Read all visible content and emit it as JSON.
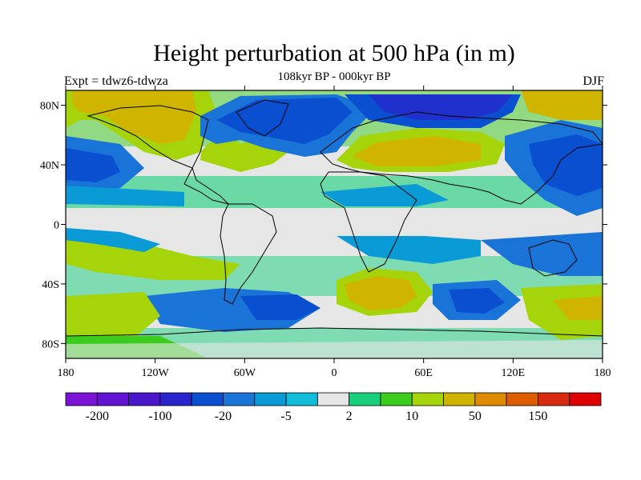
{
  "title": "Height perturbation at 500 hPa (in m)",
  "subtitle": "108kyr BP - 000kyr BP",
  "left_label": "Expt = tdwz6-tdwza",
  "right_label": "DJF",
  "map": {
    "projection": "cylindrical equidistant",
    "lon_range": [
      -180,
      180
    ],
    "lat_range": [
      -90,
      90
    ],
    "y_ticks": [
      {
        "lat": 80,
        "label": "80N"
      },
      {
        "lat": 40,
        "label": "40N"
      },
      {
        "lat": 0,
        "label": "0"
      },
      {
        "lat": -40,
        "label": "40S"
      },
      {
        "lat": -80,
        "label": "80S"
      }
    ],
    "x_ticks": [
      {
        "lon": -180,
        "label": "180"
      },
      {
        "lon": -120,
        "label": "120W"
      },
      {
        "lon": -60,
        "label": "60W"
      },
      {
        "lon": 0,
        "label": "0"
      },
      {
        "lon": 60,
        "label": "60E"
      },
      {
        "lon": 120,
        "label": "120E"
      },
      {
        "lon": 180,
        "label": "180"
      }
    ]
  },
  "colorbar": {
    "colors": [
      "#7b14d6",
      "#6212d2",
      "#4a16cc",
      "#2a24cc",
      "#0a4fd0",
      "#1a74d8",
      "#0a9ad6",
      "#10bcd8",
      "#e6e6e6",
      "#18d07c",
      "#3ccc1e",
      "#a6d40a",
      "#cfb400",
      "#dd8c00",
      "#dd5c00",
      "#d82a10",
      "#de0000"
    ],
    "labels": [
      {
        "boundary": 1,
        "text": "-200"
      },
      {
        "boundary": 3,
        "text": "-100"
      },
      {
        "boundary": 5,
        "text": "-20"
      },
      {
        "boundary": 7,
        "text": "-5"
      },
      {
        "boundary": 9,
        "text": "2"
      },
      {
        "boundary": 11,
        "text": "10"
      },
      {
        "boundary": 13,
        "text": "50"
      },
      {
        "boundary": 15,
        "text": "150"
      }
    ]
  },
  "field_blobs": [
    {
      "lon": -130,
      "lat": 68,
      "rx": 40,
      "ry": 18,
      "color": "#cfb400"
    },
    {
      "lon": -40,
      "lat": 68,
      "rx": 40,
      "ry": 18,
      "color": "#0a4fd0"
    },
    {
      "lon": 40,
      "lat": 45,
      "rx": 45,
      "ry": 14,
      "color": "#cfb400"
    },
    {
      "lon": 140,
      "lat": 45,
      "rx": 30,
      "ry": 14,
      "color": "#0a4fd0"
    },
    {
      "lon": -160,
      "lat": 40,
      "rx": 22,
      "ry": 12,
      "color": "#0a4fd0"
    },
    {
      "lon": -110,
      "lat": -30,
      "rx": 40,
      "ry": 10,
      "color": "#3ccc1e"
    },
    {
      "lon": 40,
      "lat": -45,
      "rx": 25,
      "ry": 10,
      "color": "#cfb400"
    },
    {
      "lon": -40,
      "lat": -50,
      "rx": 30,
      "ry": 10,
      "color": "#0a4fd0"
    },
    {
      "lon": 100,
      "lat": -50,
      "rx": 30,
      "ry": 10,
      "color": "#0a4fd0"
    },
    {
      "lon": -160,
      "lat": -65,
      "rx": 25,
      "ry": 10,
      "color": "#a6d40a"
    }
  ]
}
